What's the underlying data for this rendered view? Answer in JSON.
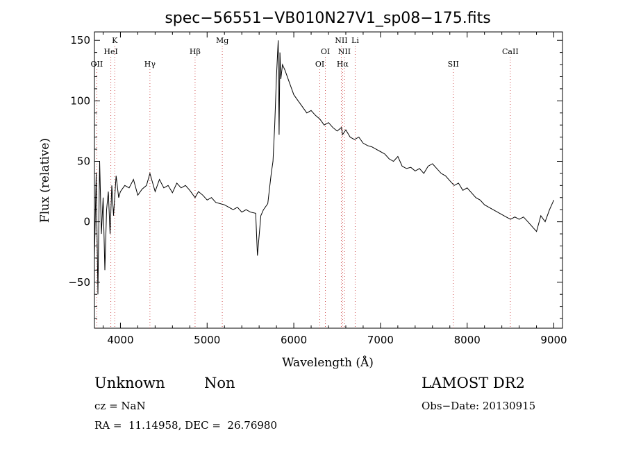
{
  "chart_data": {
    "type": "line",
    "title": "spec−56551−VB010N27V1_sp08−175.fits",
    "xlabel": "Wavelength (Å)",
    "ylabel": "Flux (relative)",
    "xlim": [
      3700,
      9100
    ],
    "ylim": [
      -88,
      157
    ],
    "xticks": [
      4000,
      5000,
      6000,
      7000,
      8000,
      9000
    ],
    "yticks": [
      -50,
      0,
      50,
      100,
      150
    ],
    "tick_labels_y": [
      "−50",
      "0",
      "50",
      "100",
      "150"
    ],
    "grid": false,
    "series": [
      {
        "x": [
          3700,
          3720,
          3740,
          3760,
          3780,
          3800,
          3820,
          3840,
          3860,
          3880,
          3900,
          3920,
          3950,
          3980,
          4000,
          4050,
          4100,
          4150,
          4200,
          4250,
          4300,
          4340,
          4400,
          4450,
          4500,
          4550,
          4600,
          4650,
          4700,
          4750,
          4800,
          4861,
          4900,
          4950,
          5000,
          5050,
          5100,
          5150,
          5200,
          5250,
          5300,
          5350,
          5400,
          5450,
          5500,
          5560,
          5580,
          5620,
          5650,
          5700,
          5740,
          5760,
          5780,
          5800,
          5820,
          5830,
          5840,
          5850,
          5870,
          5900,
          5950,
          6000,
          6050,
          6100,
          6150,
          6200,
          6250,
          6300,
          6350,
          6400,
          6450,
          6500,
          6550,
          6563,
          6600,
          6650,
          6700,
          6750,
          6800,
          6850,
          6900,
          6950,
          7000,
          7050,
          7100,
          7150,
          7200,
          7250,
          7300,
          7350,
          7400,
          7450,
          7500,
          7550,
          7600,
          7650,
          7700,
          7750,
          7800,
          7850,
          7900,
          7950,
          8000,
          8050,
          8100,
          8150,
          8200,
          8250,
          8300,
          8350,
          8400,
          8450,
          8500,
          8550,
          8600,
          8650,
          8700,
          8750,
          8800,
          8850,
          8900,
          8950,
          9000
        ],
        "values": [
          -30,
          40,
          -60,
          50,
          -10,
          20,
          -40,
          10,
          25,
          -10,
          30,
          5,
          38,
          20,
          25,
          30,
          28,
          35,
          22,
          27,
          30,
          40,
          25,
          35,
          28,
          30,
          24,
          32,
          28,
          30,
          26,
          20,
          25,
          22,
          18,
          20,
          16,
          15,
          14,
          12,
          10,
          12,
          8,
          10,
          8,
          7,
          -28,
          5,
          10,
          15,
          40,
          50,
          80,
          120,
          150,
          72,
          140,
          118,
          130,
          125,
          115,
          105,
          100,
          95,
          90,
          92,
          88,
          85,
          80,
          82,
          78,
          75,
          78,
          72,
          76,
          70,
          68,
          70,
          65,
          63,
          62,
          60,
          58,
          56,
          52,
          50,
          54,
          46,
          44,
          45,
          42,
          44,
          40,
          46,
          48,
          44,
          40,
          38,
          34,
          30,
          32,
          26,
          28,
          24,
          20,
          18,
          14,
          12,
          10,
          8,
          6,
          4,
          2,
          4,
          2,
          4,
          0,
          -4,
          -8,
          5,
          0,
          10,
          18
        ]
      }
    ],
    "lines": [
      {
        "label": "OII",
        "x": 3727,
        "row": 3
      },
      {
        "label": "K",
        "x": 3934,
        "row": 1
      },
      {
        "label": "HeI",
        "x": 3889,
        "row": 2
      },
      {
        "label": "Hγ",
        "x": 4340,
        "row": 3
      },
      {
        "label": "Hβ",
        "x": 4861,
        "row": 2
      },
      {
        "label": "Mg",
        "x": 5175,
        "row": 1
      },
      {
        "label": "OI",
        "x": 6300,
        "row": 3
      },
      {
        "label": "OI",
        "x": 6364,
        "row": 2
      },
      {
        "label": "NII",
        "x": 6548,
        "row": 1
      },
      {
        "label": "NII",
        "x": 6584,
        "row": 2
      },
      {
        "label": "Hα",
        "x": 6563,
        "row": 3
      },
      {
        "label": "Li",
        "x": 6708,
        "row": 1
      },
      {
        "label": "SII",
        "x": 7840,
        "row": 3
      },
      {
        "label": "CaII",
        "x": 8498,
        "row": 2
      }
    ]
  },
  "info": {
    "class": "Unknown",
    "subclass": "Non",
    "survey": "LAMOST DR2",
    "cz": "cz = NaN",
    "obs_date": "Obs−Date: 20130915",
    "radec": "RA =  11.14958, DEC =  26.76980"
  }
}
